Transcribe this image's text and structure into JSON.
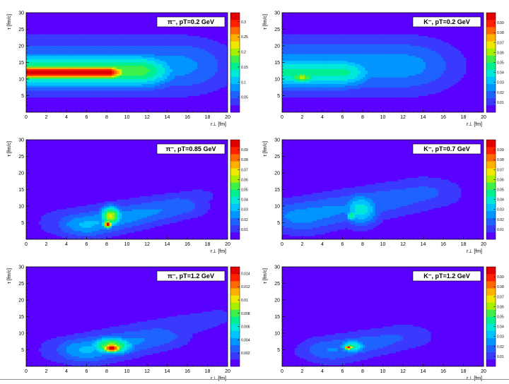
{
  "colors": {
    "background": "#5a00ff",
    "colormap": [
      "#5a00ff",
      "#3a3aff",
      "#1f63ff",
      "#0095ff",
      "#00c3ff",
      "#00e8d8",
      "#00f090",
      "#3df04a",
      "#a8f000",
      "#f0e800",
      "#ffb000",
      "#ff6a00",
      "#ff2000",
      "#e00000"
    ]
  },
  "chart_data": [
    {
      "type": "heatmap",
      "title": "π⁻, pT=0.2 GeV",
      "xlabel": "r⊥ [fm]",
      "ylabel": "τ [fm/c]",
      "zlabel": "",
      "xlim": [
        0,
        20
      ],
      "ylim": [
        0,
        30
      ],
      "x_ticks": [
        "0",
        "2",
        "4",
        "6",
        "8",
        "10",
        "12",
        "14",
        "16",
        "18",
        "20"
      ],
      "y_ticks": [
        "5",
        "10",
        "15",
        "20",
        "25",
        "30"
      ],
      "z_ticks": [
        "0.05",
        "0.1",
        "0.15",
        "0.2",
        "0.25",
        "0.3"
      ],
      "zlim": [
        0,
        0.33
      ],
      "legend_position": "top-right",
      "features": [
        {
          "shape": "plateau",
          "x0": 0,
          "x1": 8,
          "y": 12,
          "height": 0.33,
          "sx": 1.5,
          "sy": 1.6
        },
        {
          "shape": "plateau",
          "x0": 0,
          "x1": 11,
          "y": 12.5,
          "height": 0.18,
          "sx": 3,
          "sy": 3.8
        },
        {
          "shape": "plateau",
          "x0": 0,
          "x1": 15,
          "y": 14,
          "height": 0.08,
          "sx": 4,
          "sy": 6
        }
      ]
    },
    {
      "type": "heatmap",
      "title": "K⁻, pT=0.2 GeV",
      "xlabel": "r⊥ [fm]",
      "ylabel": "τ [fm/c]",
      "zlabel": "",
      "xlim": [
        0,
        20
      ],
      "ylim": [
        0,
        30
      ],
      "x_ticks": [
        "0",
        "2",
        "4",
        "6",
        "8",
        "10",
        "12",
        "14",
        "16",
        "18",
        "20"
      ],
      "y_ticks": [
        "5",
        "10",
        "15",
        "20",
        "25",
        "30"
      ],
      "z_ticks": [
        "0.01",
        "0.02",
        "0.03",
        "0.04",
        "0.05",
        "0.06",
        "0.07",
        "0.08",
        "0.09"
      ],
      "zlim": [
        0,
        0.1
      ],
      "legend_position": "top-right",
      "features": [
        {
          "shape": "blob",
          "x": 2,
          "y": 10.5,
          "height": 0.06,
          "sx": 1.1,
          "sy": 1.5
        },
        {
          "shape": "plateau",
          "x0": 0,
          "x1": 6,
          "y": 12,
          "height": 0.045,
          "sx": 2.5,
          "sy": 3.5
        },
        {
          "shape": "plateau",
          "x0": 0,
          "x1": 12,
          "y": 14,
          "height": 0.025,
          "sx": 4,
          "sy": 6
        }
      ]
    },
    {
      "type": "heatmap",
      "title": "π⁻, pT=0.85 GeV",
      "xlabel": "r⊥ [fm]",
      "ylabel": "τ [fm/c]",
      "zlabel": "",
      "xlim": [
        0,
        20
      ],
      "ylim": [
        0,
        30
      ],
      "x_ticks": [
        "0",
        "2",
        "4",
        "6",
        "8",
        "10",
        "12",
        "14",
        "16",
        "18",
        "20"
      ],
      "y_ticks": [
        "5",
        "10",
        "15",
        "20",
        "25",
        "30"
      ],
      "z_ticks": [
        "0.01",
        "0.02",
        "0.03",
        "0.04",
        "0.05",
        "0.06",
        "0.07",
        "0.08",
        "0.09"
      ],
      "zlim": [
        0,
        0.1
      ],
      "legend_position": "top-right",
      "features": [
        {
          "shape": "blob",
          "x": 8.1,
          "y": 4.5,
          "height": 0.1,
          "sx": 0.35,
          "sy": 0.8
        },
        {
          "shape": "blob",
          "x": 8.4,
          "y": 7,
          "height": 0.065,
          "sx": 0.8,
          "sy": 2.2
        },
        {
          "shape": "ridge",
          "x0": 6,
          "y0": 4.5,
          "x1": 15,
          "y1": 10,
          "height": 0.03,
          "width": 2.3
        },
        {
          "shape": "ridge",
          "x0": 5,
          "y0": 5,
          "x1": 17,
          "y1": 13,
          "height": 0.012,
          "width": 3.6
        }
      ]
    },
    {
      "type": "heatmap",
      "title": "K⁻, pT=0.7 GeV",
      "xlabel": "r⊥ [fm]",
      "ylabel": "τ [fm/c]",
      "zlabel": "",
      "xlim": [
        0,
        20
      ],
      "ylim": [
        0,
        30
      ],
      "x_ticks": [
        "0",
        "2",
        "4",
        "6",
        "8",
        "10",
        "12",
        "14",
        "16",
        "18",
        "20"
      ],
      "y_ticks": [
        "5",
        "10",
        "15",
        "20",
        "25",
        "30"
      ],
      "z_ticks": [
        "0.01",
        "0.02",
        "0.03",
        "0.04",
        "0.05",
        "0.06",
        "0.07",
        "0.08",
        "0.09"
      ],
      "zlim": [
        0,
        0.1
      ],
      "legend_position": "top-right",
      "features": [
        {
          "shape": "blob",
          "x": 6.9,
          "y": 7.2,
          "height": 0.05,
          "sx": 0.4,
          "sy": 1.2
        },
        {
          "shape": "blob",
          "x": 7.8,
          "y": 9,
          "height": 0.04,
          "sx": 1.4,
          "sy": 3.5
        },
        {
          "shape": "ridge",
          "x0": 2,
          "y0": 7,
          "x1": 14,
          "y1": 14,
          "height": 0.025,
          "width": 3
        },
        {
          "shape": "ridge",
          "x0": 0,
          "y0": 6.5,
          "x1": 16,
          "y1": 18,
          "height": 0.01,
          "width": 4.5
        }
      ]
    },
    {
      "type": "heatmap",
      "title": "π⁻, pT=1.2 GeV",
      "xlabel": "r⊥ [fm]",
      "ylabel": "τ [fm/c]",
      "zlabel": "",
      "xlim": [
        0,
        20
      ],
      "ylim": [
        0,
        30
      ],
      "x_ticks": [
        "0",
        "2",
        "4",
        "6",
        "8",
        "10",
        "12",
        "14",
        "16",
        "18",
        "20"
      ],
      "y_ticks": [
        "5",
        "10",
        "15",
        "20",
        "25",
        "30"
      ],
      "z_ticks": [
        "0.002",
        "0.004",
        "0.006",
        "0.008",
        "0.01",
        "0.012",
        "0.014"
      ],
      "zlim": [
        0,
        0.015
      ],
      "legend_position": "top-right",
      "features": [
        {
          "shape": "blob",
          "x": 8.5,
          "y": 5.5,
          "height": 0.015,
          "sx": 0.7,
          "sy": 1.0
        },
        {
          "shape": "blob",
          "x": 8.5,
          "y": 6.2,
          "height": 0.009,
          "sx": 1.6,
          "sy": 2.0
        },
        {
          "shape": "ridge",
          "x0": 6,
          "y0": 5,
          "x1": 13,
          "y1": 9,
          "height": 0.0045,
          "width": 2.4
        },
        {
          "shape": "ridge",
          "x0": 5,
          "y0": 5,
          "x1": 19,
          "y1": 15,
          "height": 0.0018,
          "width": 3.6
        }
      ]
    },
    {
      "type": "heatmap",
      "title": "K⁻, pT=1.2 GeV",
      "xlabel": "r⊥ [fm]",
      "ylabel": "τ [fm/c]",
      "zlabel": "",
      "xlim": [
        0,
        20
      ],
      "ylim": [
        0,
        30
      ],
      "x_ticks": [
        "0",
        "2",
        "4",
        "6",
        "8",
        "10",
        "12",
        "14",
        "16",
        "18",
        "20"
      ],
      "y_ticks": [
        "5",
        "10",
        "15",
        "20",
        "25",
        "30"
      ],
      "z_ticks": [
        "0.01",
        "0.02",
        "0.03",
        "0.04",
        "0.05",
        "0.06",
        "0.07",
        "0.08",
        "0.09"
      ],
      "zlim": [
        0,
        0.1
      ],
      "legend_position": "top-right",
      "features": [
        {
          "shape": "blob",
          "x": 6.6,
          "y": 5.7,
          "height": 0.1,
          "sx": 0.3,
          "sy": 0.5
        },
        {
          "shape": "blob",
          "x": 7,
          "y": 6,
          "height": 0.045,
          "sx": 1.0,
          "sy": 1.6
        },
        {
          "shape": "ridge",
          "x0": 5,
          "y0": 5,
          "x1": 12,
          "y1": 9,
          "height": 0.022,
          "width": 2.4
        },
        {
          "shape": "ridge",
          "x0": 3,
          "y0": 4.5,
          "x1": 20,
          "y1": 17,
          "height": 0.008,
          "width": 3.8
        }
      ]
    }
  ]
}
